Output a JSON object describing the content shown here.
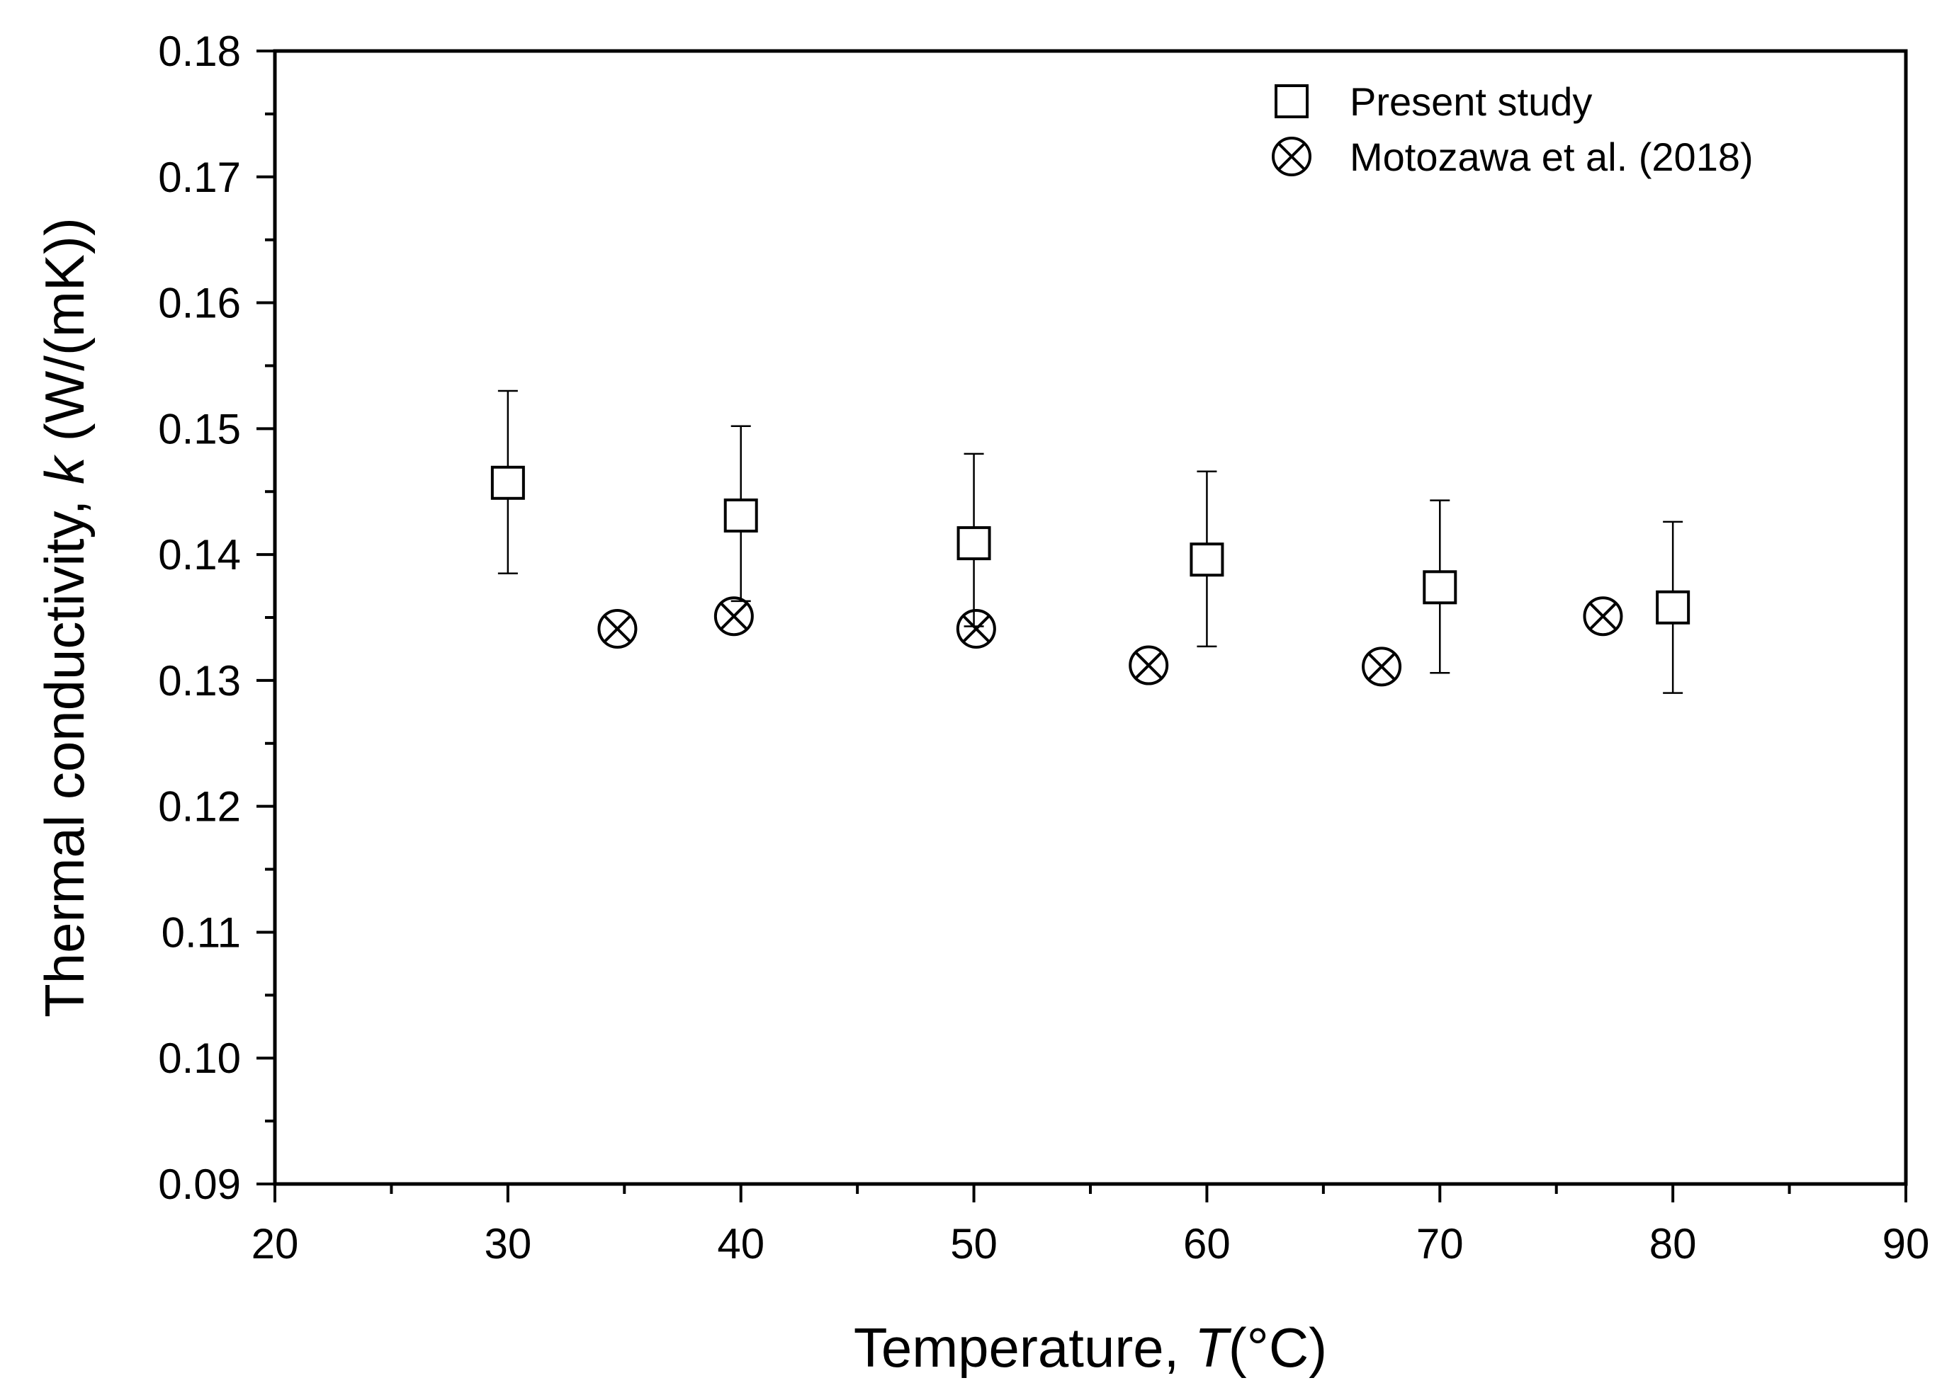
{
  "chart_data": {
    "type": "scatter",
    "title": "",
    "xlabel": {
      "prefix": "Temperature, ",
      "symbol": "T",
      "suffix": "(°C)"
    },
    "ylabel": {
      "prefix": "Thermal conductivity, ",
      "symbol": "k",
      "suffix": " (W/(mK))"
    },
    "xlim": [
      20,
      90
    ],
    "ylim": [
      0.09,
      0.18
    ],
    "xticks": [
      "20",
      "30",
      "40",
      "50",
      "60",
      "70",
      "80",
      "90"
    ],
    "yticks": [
      "0.09",
      "0.10",
      "0.11",
      "0.12",
      "0.13",
      "0.14",
      "0.15",
      "0.16",
      "0.17",
      "0.18"
    ],
    "grid": false,
    "legend_position": "top-right",
    "series": [
      {
        "name": "Present study",
        "marker": "open-square",
        "x": [
          30,
          40,
          50,
          60,
          70,
          80
        ],
        "y": [
          0.1457,
          0.1431,
          0.1409,
          0.1396,
          0.1374,
          0.1358
        ],
        "err_upper": [
          0.153,
          0.1502,
          0.148,
          0.1466,
          0.1443,
          0.1426
        ],
        "err_lower": [
          0.1385,
          0.1363,
          0.1343,
          0.1327,
          0.1306,
          0.129
        ]
      },
      {
        "name": "Motozawa et al. (2018)",
        "marker": "circle-x",
        "x": [
          34.7,
          39.7,
          50.1,
          57.5,
          67.5,
          77.0
        ],
        "y": [
          0.1341,
          0.1351,
          0.1341,
          0.1312,
          0.1311,
          0.1351
        ]
      }
    ]
  }
}
